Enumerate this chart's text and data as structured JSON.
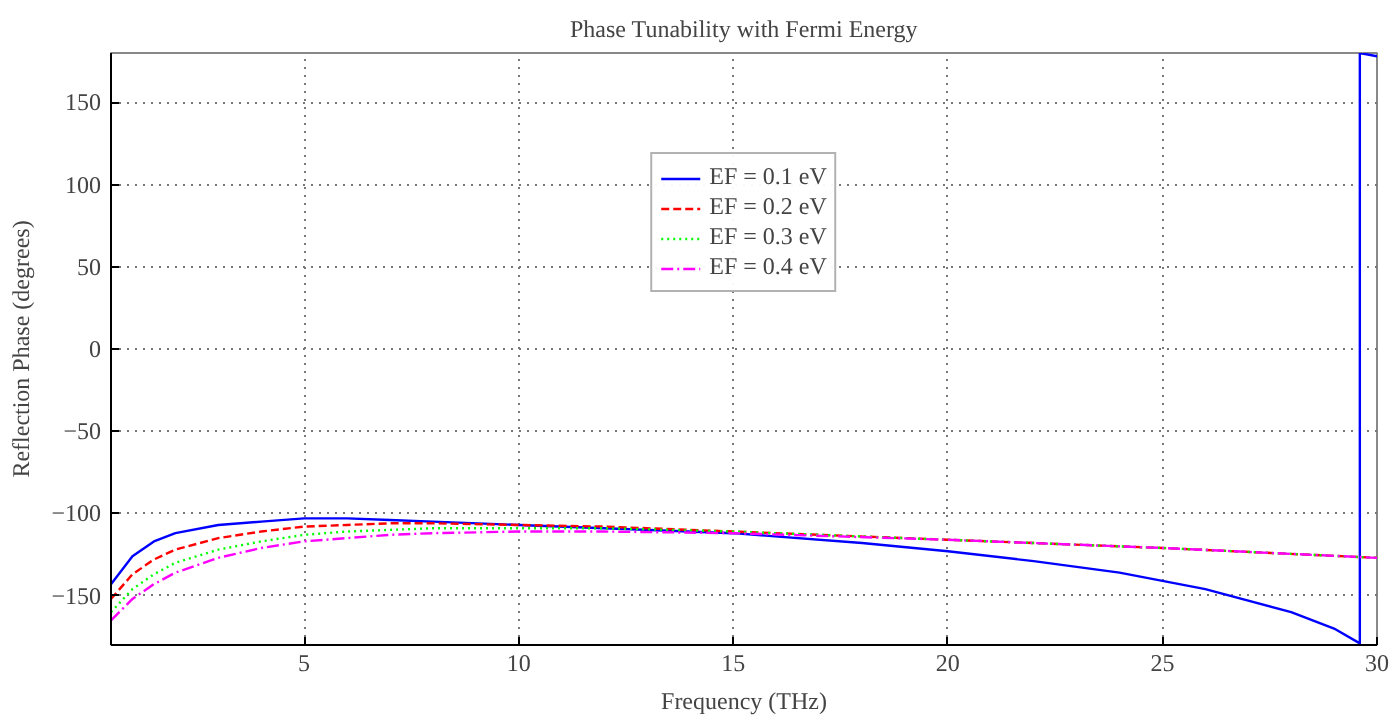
{
  "chart_data": {
    "type": "line",
    "title": "Phase Tunability with Fermi Energy",
    "xlabel": "Frequency (THz)",
    "ylabel": "Reflection Phase (degrees)",
    "xlim": [
      0.5,
      30
    ],
    "ylim": [
      -180,
      180
    ],
    "xticks": [
      5,
      10,
      15,
      20,
      25,
      30
    ],
    "yticks": [
      -150,
      -100,
      -50,
      0,
      50,
      100,
      150
    ],
    "grid": true,
    "legend": "top",
    "series": [
      {
        "name": "EF = 0.1 eV",
        "color": "#0000ff",
        "line_style": "solid",
        "x": [
          0.5,
          1,
          1.5,
          2,
          3,
          4,
          5,
          6,
          7,
          8,
          10,
          12,
          15,
          18,
          20,
          22,
          24,
          26,
          28,
          29,
          29.6,
          29.6,
          30
        ],
        "values": [
          -143,
          -126,
          -117,
          -112,
          -107,
          -105,
          -103,
          -103,
          -104,
          -105,
          -107,
          -109,
          -112,
          -118,
          -123,
          -129,
          -136,
          -146,
          -160,
          -170,
          -179,
          180,
          178
        ]
      },
      {
        "name": "EF = 0.2 eV",
        "color": "#ff0000",
        "line_style": "dashed",
        "x": [
          0.5,
          1,
          1.5,
          2,
          3,
          4,
          5,
          6,
          7,
          8,
          10,
          12,
          15,
          20,
          25,
          30
        ],
        "values": [
          -152,
          -137,
          -128,
          -122,
          -115,
          -111,
          -108,
          -107,
          -106,
          -106,
          -107,
          -108,
          -111,
          -116,
          -121,
          -127
        ]
      },
      {
        "name": "EF = 0.3 eV",
        "color": "#00ff00",
        "line_style": "dotted",
        "x": [
          0.5,
          1,
          1.5,
          2,
          3,
          4,
          5,
          6,
          7,
          8,
          10,
          12,
          15,
          20,
          25,
          30
        ],
        "values": [
          -160,
          -146,
          -137,
          -130,
          -122,
          -117,
          -113,
          -111,
          -110,
          -109,
          -109,
          -109,
          -111,
          -116,
          -121,
          -127
        ]
      },
      {
        "name": "EF = 0.4 eV",
        "color": "#ff00ff",
        "line_style": "dashdot",
        "x": [
          0.5,
          1,
          1.5,
          2,
          3,
          4,
          5,
          6,
          7,
          8,
          10,
          12,
          15,
          20,
          25,
          30
        ],
        "values": [
          -165,
          -152,
          -143,
          -136,
          -127,
          -121,
          -117,
          -115,
          -113,
          -112,
          -111,
          -111,
          -112,
          -116,
          -121,
          -127
        ]
      }
    ]
  }
}
